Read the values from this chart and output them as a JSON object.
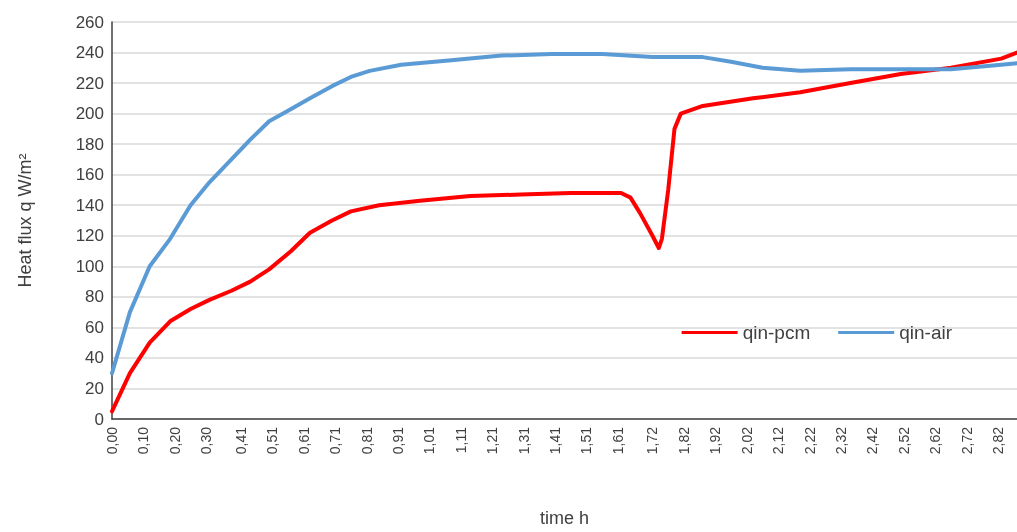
{
  "chart_data": {
    "type": "line",
    "xlabel": "time h",
    "ylabel": "Heat flux q W/m²",
    "xlim": [
      0,
      2.88
    ],
    "ylim": [
      0,
      260
    ],
    "xticks": [
      {
        "value": 0,
        "label": "0,00"
      },
      {
        "value": 0.1,
        "label": "0,10"
      },
      {
        "value": 0.2,
        "label": "0,20"
      },
      {
        "value": 0.3,
        "label": "0,30"
      },
      {
        "value": 0.41,
        "label": "0,41"
      },
      {
        "value": 0.51,
        "label": "0,51"
      },
      {
        "value": 0.61,
        "label": "0,61"
      },
      {
        "value": 0.71,
        "label": "0,71"
      },
      {
        "value": 0.81,
        "label": "0,81"
      },
      {
        "value": 0.91,
        "label": "0,91"
      },
      {
        "value": 1.01,
        "label": "1,01"
      },
      {
        "value": 1.11,
        "label": "1,11"
      },
      {
        "value": 1.21,
        "label": "1,21"
      },
      {
        "value": 1.31,
        "label": "1,31"
      },
      {
        "value": 1.41,
        "label": "1,41"
      },
      {
        "value": 1.51,
        "label": "1,51"
      },
      {
        "value": 1.61,
        "label": "1,61"
      },
      {
        "value": 1.72,
        "label": "1,72"
      },
      {
        "value": 1.82,
        "label": "1,82"
      },
      {
        "value": 1.92,
        "label": "1,92"
      },
      {
        "value": 2.02,
        "label": "2,02"
      },
      {
        "value": 2.12,
        "label": "2,12"
      },
      {
        "value": 2.22,
        "label": "2,22"
      },
      {
        "value": 2.32,
        "label": "2,32"
      },
      {
        "value": 2.42,
        "label": "2,42"
      },
      {
        "value": 2.52,
        "label": "2,52"
      },
      {
        "value": 2.62,
        "label": "2,62"
      },
      {
        "value": 2.72,
        "label": "2,72"
      },
      {
        "value": 2.82,
        "label": "2,82"
      }
    ],
    "yticks": [
      0,
      20,
      40,
      60,
      80,
      100,
      120,
      140,
      160,
      180,
      200,
      220,
      240,
      260
    ],
    "grid": "y",
    "legend": "bottom right",
    "marker": "none",
    "line_style": "solid",
    "series": [
      {
        "name": "qin-pcm",
        "color": "#ff0000",
        "x": [
          0,
          0.057,
          0.12,
          0.185,
          0.25,
          0.31,
          0.38,
          0.44,
          0.5,
          0.57,
          0.63,
          0.7,
          0.76,
          0.85,
          0.98,
          1.14,
          1.3,
          1.46,
          1.62,
          1.65,
          1.68,
          1.72,
          1.74,
          1.75,
          1.77,
          1.79,
          1.81,
          1.88,
          2.04,
          2.19,
          2.35,
          2.51,
          2.67,
          2.83,
          2.88
        ],
        "values": [
          5,
          30,
          50,
          64,
          72,
          78,
          84,
          90,
          98,
          110,
          122,
          130,
          136,
          140,
          143,
          146,
          147,
          148,
          148,
          145,
          135,
          120,
          112,
          118,
          150,
          190,
          200,
          205,
          210,
          214,
          220,
          226,
          230,
          236,
          240
        ]
      },
      {
        "name": "qin-air",
        "color": "#5b9bd5",
        "x": [
          0,
          0.057,
          0.12,
          0.185,
          0.25,
          0.31,
          0.38,
          0.44,
          0.5,
          0.57,
          0.63,
          0.7,
          0.76,
          0.82,
          0.92,
          1.08,
          1.24,
          1.4,
          1.56,
          1.72,
          1.88,
          1.97,
          2.07,
          2.19,
          2.35,
          2.51,
          2.67,
          2.83,
          2.88
        ],
        "values": [
          30,
          70,
          100,
          118,
          140,
          155,
          170,
          183,
          195,
          203,
          210,
          218,
          224,
          228,
          232,
          235,
          238,
          239,
          239,
          237,
          237,
          234,
          230,
          228,
          229,
          229,
          229,
          232,
          233
        ]
      }
    ]
  }
}
